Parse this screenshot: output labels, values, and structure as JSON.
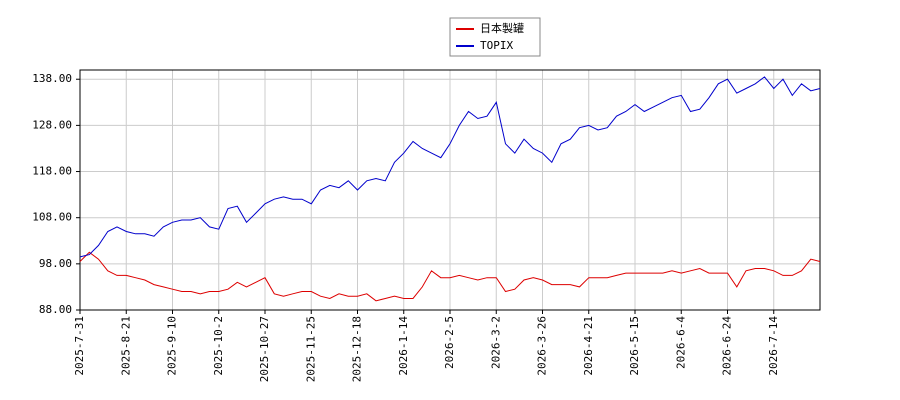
{
  "chart_data": {
    "type": "line",
    "categories": [
      "2025-7-31",
      null,
      null,
      null,
      null,
      "2025-8-21",
      null,
      null,
      null,
      null,
      "2025-9-10",
      null,
      null,
      null,
      null,
      "2025-10-2",
      null,
      null,
      null,
      null,
      "2025-10-27",
      null,
      null,
      null,
      null,
      "2025-11-25",
      null,
      null,
      null,
      null,
      "2025-12-18",
      null,
      null,
      null,
      null,
      "2026-1-14",
      null,
      null,
      null,
      null,
      "2026-2-5",
      null,
      null,
      null,
      null,
      "2026-3-2",
      null,
      null,
      null,
      null,
      "2026-3-26",
      null,
      null,
      null,
      null,
      "2026-4-21",
      null,
      null,
      null,
      null,
      "2026-5-15",
      null,
      null,
      null,
      null,
      "2026-6-4",
      null,
      null,
      null,
      null,
      "2026-6-24",
      null,
      null,
      null,
      null,
      "2026-7-14",
      null,
      null,
      null,
      null,
      null
    ],
    "series": [
      {
        "name": "日本製罐",
        "color": "#dd0000",
        "values": [
          98.5,
          100.5,
          99,
          96.5,
          95.5,
          95.5,
          95,
          94.5,
          93.5,
          93,
          92.5,
          92,
          92,
          91.5,
          92,
          92,
          92.5,
          94,
          93,
          94,
          95,
          91.5,
          91,
          91.5,
          92,
          92,
          91,
          90.5,
          91.5,
          91,
          91,
          91.5,
          90,
          90.5,
          91,
          90.5,
          90.5,
          93,
          96.5,
          95,
          95,
          95.5,
          95,
          94.5,
          95,
          95,
          92,
          92.5,
          94.5,
          95,
          94.5,
          93.5,
          93.5,
          93.5,
          93,
          95,
          95,
          95,
          95.5,
          96,
          96,
          96,
          96,
          96,
          96.5,
          96,
          96.5,
          97,
          96,
          96,
          96,
          93,
          96.5,
          97,
          97,
          96.5,
          95.5,
          95.5,
          96.5,
          99,
          98.5
        ]
      },
      {
        "name": "TOPIX",
        "color": "#0000cc",
        "values": [
          99.5,
          100,
          102,
          105,
          106,
          105,
          104.5,
          104.5,
          104,
          106,
          107,
          107.5,
          107.5,
          108,
          106,
          105.5,
          110,
          110.5,
          107,
          109,
          111,
          112,
          112.5,
          112,
          112,
          111,
          114,
          115,
          114.5,
          116,
          114,
          116,
          116.5,
          116,
          120,
          122,
          124.5,
          123,
          122,
          121,
          124,
          128,
          131,
          129.5,
          130,
          133,
          124,
          122,
          125,
          123,
          122,
          120,
          124,
          125,
          127.5,
          128,
          127,
          127.5,
          130,
          131,
          132.5,
          131,
          132,
          133,
          134,
          134.5,
          131,
          131.5,
          134,
          137,
          138,
          135,
          136,
          137,
          138.5,
          136,
          138,
          134.5,
          137,
          135.5,
          136
        ]
      }
    ],
    "ylim": [
      88,
      140
    ],
    "yticks": [
      {
        "value": 88,
        "label": "88.00"
      },
      {
        "value": 98,
        "label": "98.00"
      },
      {
        "value": 108,
        "label": "108.00"
      },
      {
        "value": 118,
        "label": "118.00"
      },
      {
        "value": 128,
        "label": "128.00"
      },
      {
        "value": 138,
        "label": "138.00"
      }
    ],
    "grid": true
  }
}
